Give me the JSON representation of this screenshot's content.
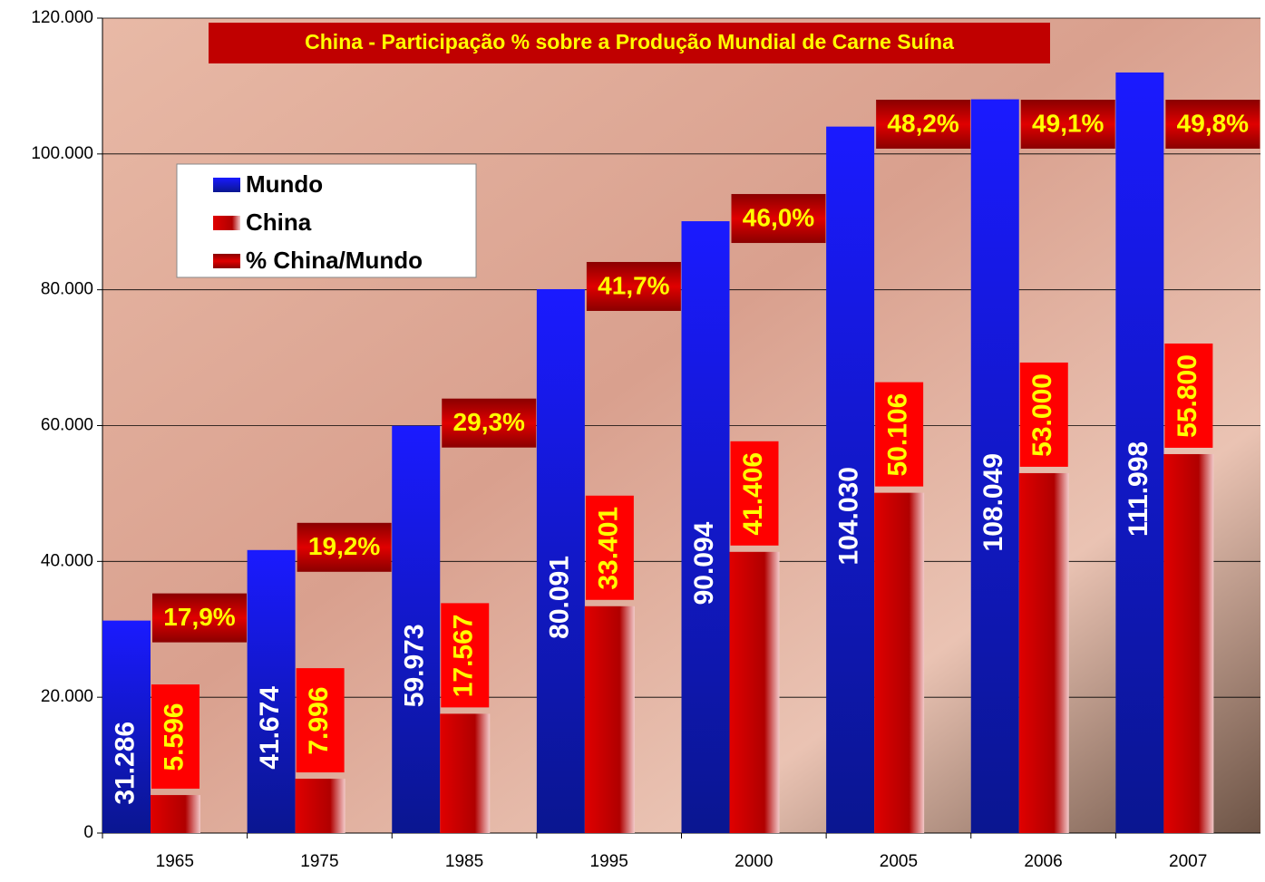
{
  "chart_data": {
    "type": "bar",
    "title": "China - Participação % sobre a Produção Mundial de Carne Suína",
    "categories": [
      "1965",
      "1975",
      "1985",
      "1995",
      "2000",
      "2005",
      "2006",
      "2007"
    ],
    "series": [
      {
        "name": "Mundo",
        "color": "#1414e6",
        "values": [
          31286,
          41674,
          59973,
          80091,
          90094,
          104030,
          108049,
          111998
        ],
        "value_labels": [
          "31.286",
          "41.674",
          "59.973",
          "80.091",
          "90.094",
          "104.030",
          "108.049",
          "111.998"
        ]
      },
      {
        "name": "China",
        "color": "#d80000",
        "values": [
          5596,
          7996,
          17567,
          33401,
          41406,
          50106,
          53000,
          55800
        ],
        "value_labels": [
          "5.596",
          "7.996",
          "17.567",
          "33.401",
          "41.406",
          "50.106",
          "53.000",
          "55.800"
        ]
      },
      {
        "name": "% China/Mundo",
        "color": "#c00000",
        "values": [
          17.9,
          19.2,
          29.3,
          41.7,
          46.0,
          48.2,
          49.1,
          49.8
        ],
        "value_labels": [
          "17,9%",
          "19,2%",
          "29,3%",
          "41,7%",
          "46,0%",
          "48,2%",
          "49,1%",
          "49,8%"
        ]
      }
    ],
    "ylim": [
      0,
      120000
    ],
    "yticks": [
      0,
      {
        "value": 20000,
        "label": "20.000"
      },
      {
        "value": 40000,
        "label": "40.000"
      },
      {
        "value": 60000,
        "label": "60.000"
      },
      {
        "value": 80000,
        "label": "80.000"
      },
      {
        "value": 100000,
        "label": "100.000"
      },
      {
        "value": 120000,
        "label": "120.000"
      }
    ],
    "grid": true
  }
}
